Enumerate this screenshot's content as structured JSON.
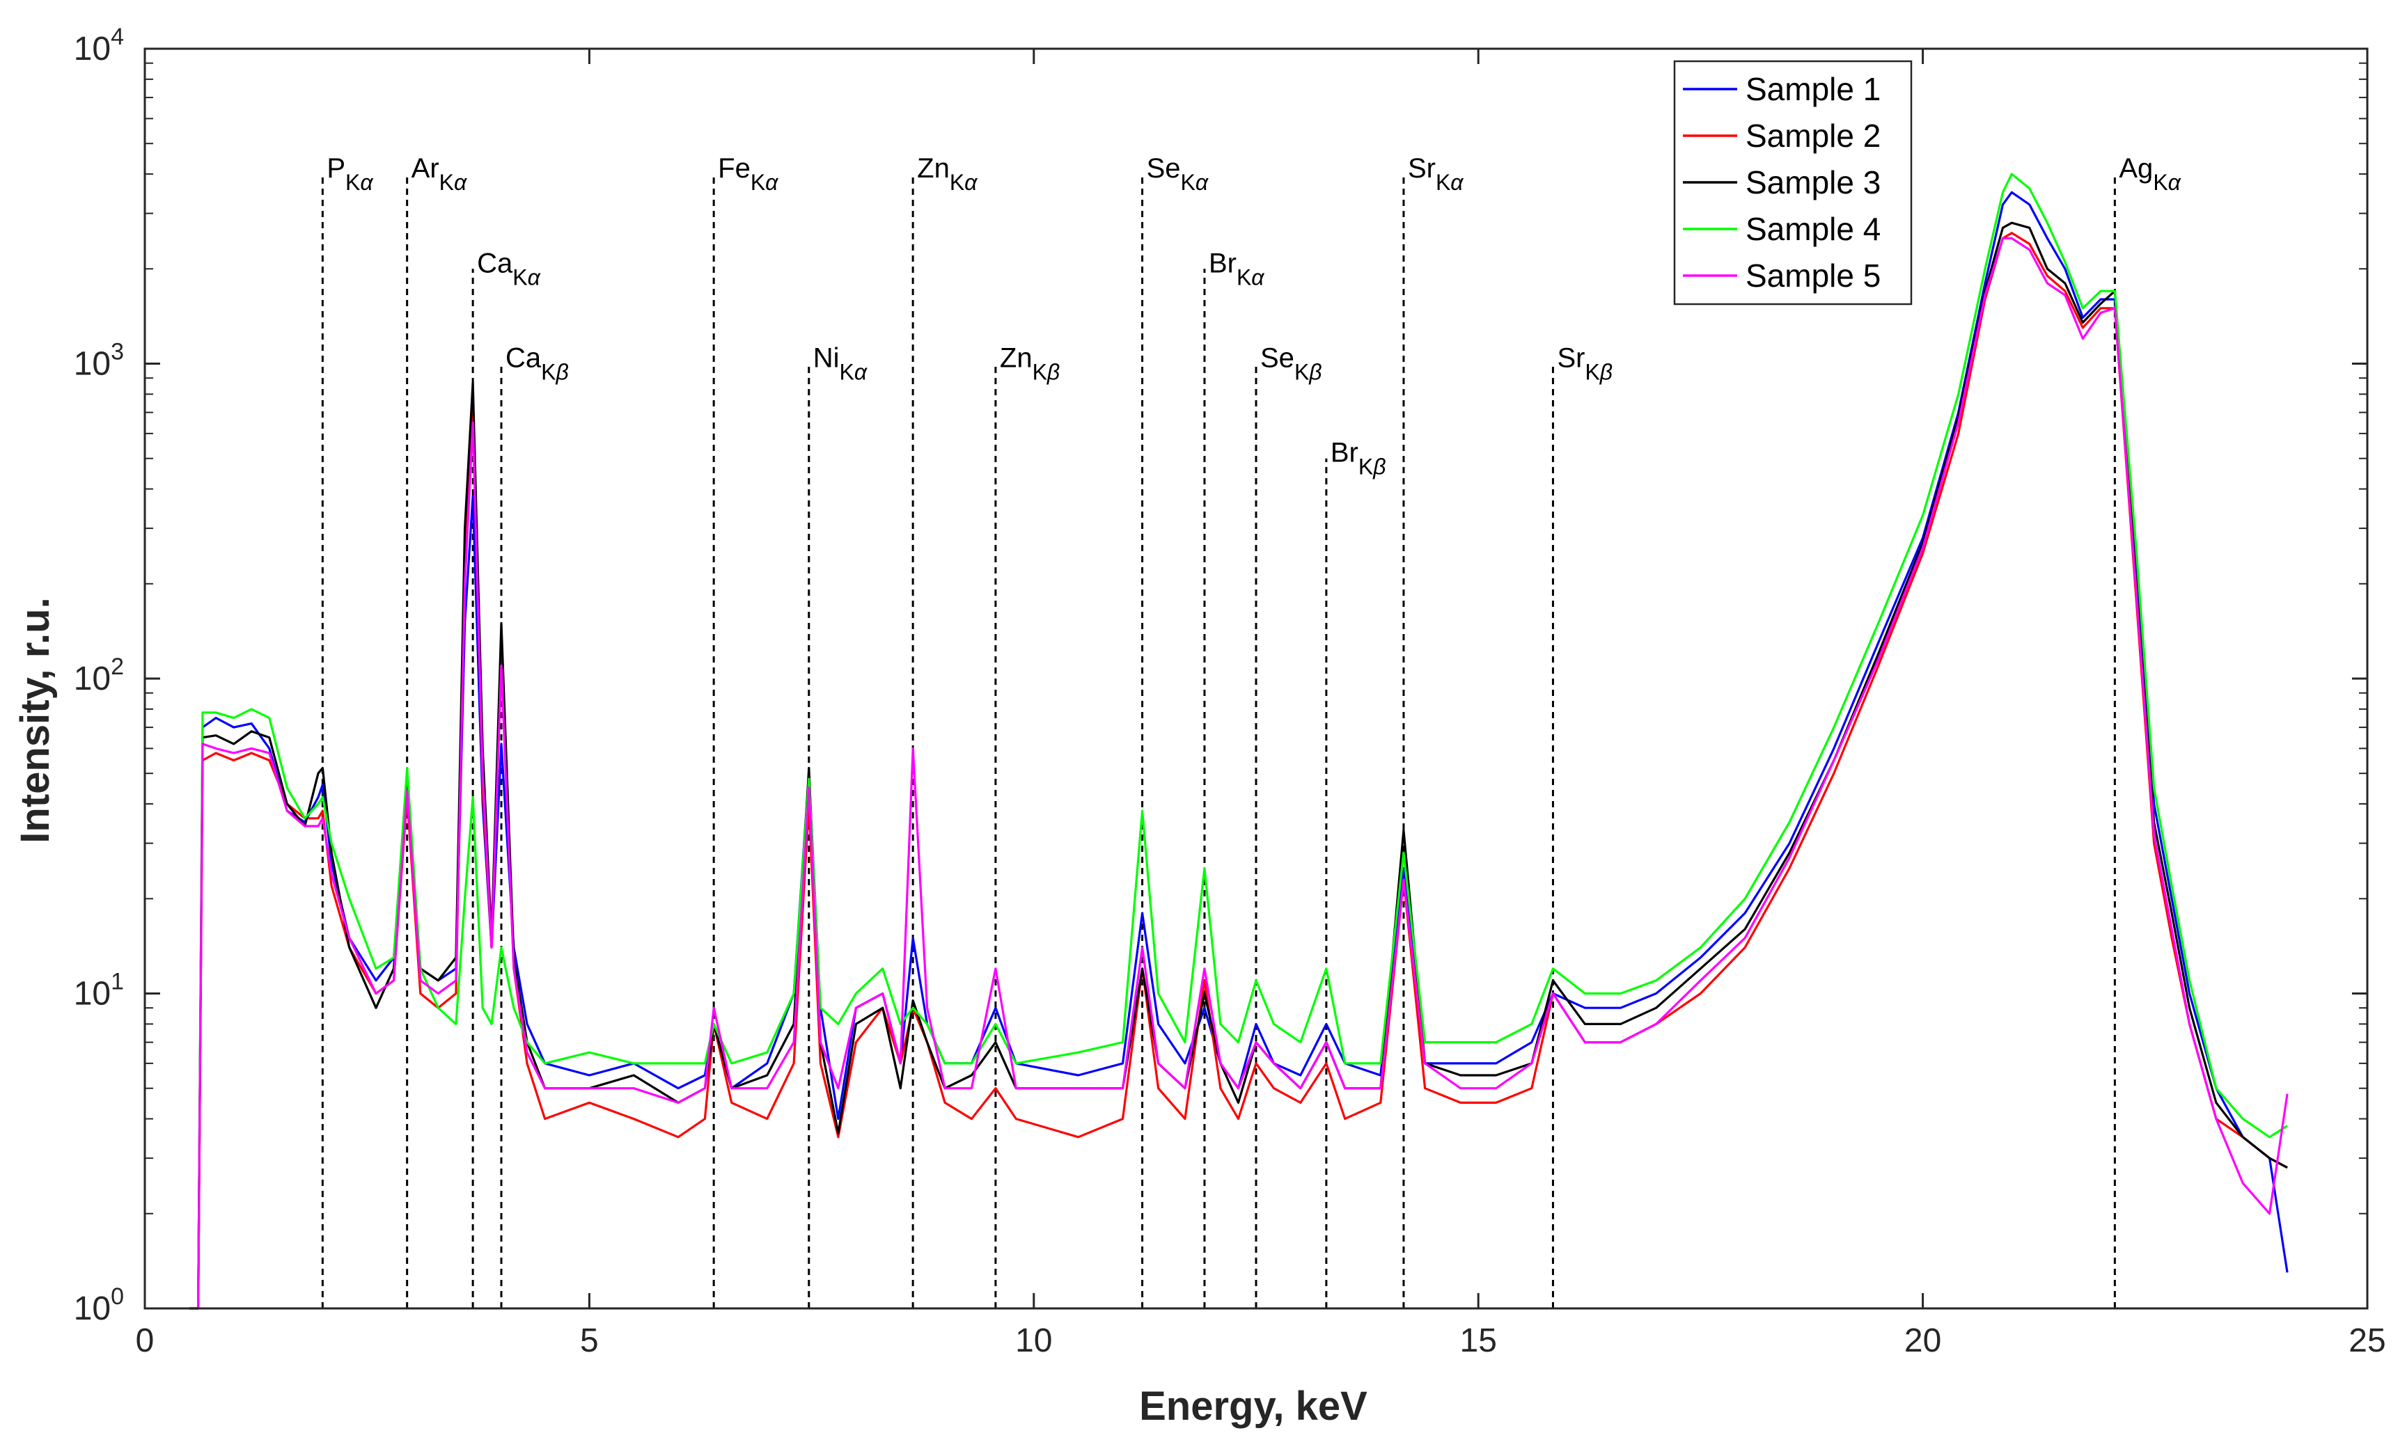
{
  "chart_data": {
    "type": "line",
    "title": "",
    "xlabel": "Energy, keV",
    "ylabel": "Intensity, r.u.",
    "xlim": [
      0,
      25
    ],
    "ylim": [
      1,
      10000
    ],
    "yscale": "log",
    "xticks": [
      0,
      5,
      10,
      15,
      20,
      25
    ],
    "yticks": [
      {
        "value": 1,
        "base": "10",
        "exp": "0"
      },
      {
        "value": 10,
        "base": "10",
        "exp": "1"
      },
      {
        "value": 100,
        "base": "10",
        "exp": "2"
      },
      {
        "value": 1000,
        "base": "10",
        "exp": "3"
      },
      {
        "value": 10000,
        "base": "10",
        "exp": "4"
      }
    ],
    "legend_position": "top-right",
    "peaks": [
      {
        "element": "P",
        "line": "Kα",
        "energy": 2.0,
        "top": 4000
      },
      {
        "element": "Ar",
        "line": "Kα",
        "energy": 2.95,
        "top": 4000
      },
      {
        "element": "Ca",
        "line": "Kα",
        "energy": 3.69,
        "top": 2000
      },
      {
        "element": "Ca",
        "line": "Kβ",
        "energy": 4.01,
        "top": 1000
      },
      {
        "element": "Fe",
        "line": "Kα",
        "energy": 6.4,
        "top": 4000
      },
      {
        "element": "Ni",
        "line": "Kα",
        "energy": 7.47,
        "top": 1000
      },
      {
        "element": "Zn",
        "line": "Kα",
        "energy": 8.64,
        "top": 4000
      },
      {
        "element": "Zn",
        "line": "Kβ",
        "energy": 9.57,
        "top": 1000
      },
      {
        "element": "Se",
        "line": "Kα",
        "energy": 11.22,
        "top": 4000
      },
      {
        "element": "Br",
        "line": "Kα",
        "energy": 11.92,
        "top": 2000
      },
      {
        "element": "Se",
        "line": "Kβ",
        "energy": 12.5,
        "top": 1000
      },
      {
        "element": "Br",
        "line": "Kβ",
        "energy": 13.29,
        "top": 500
      },
      {
        "element": "Sr",
        "line": "Kα",
        "energy": 14.16,
        "top": 4000
      },
      {
        "element": "Sr",
        "line": "Kβ",
        "energy": 15.84,
        "top": 1000
      },
      {
        "element": "Ag",
        "line": "Kα",
        "energy": 22.16,
        "top": 4000
      }
    ],
    "series": [
      {
        "name": "Sample 1",
        "color": "#0000ff",
        "x": [
          0.5,
          0.6,
          0.65,
          0.8,
          1.0,
          1.2,
          1.4,
          1.6,
          1.8,
          1.95,
          2.0,
          2.1,
          2.3,
          2.6,
          2.8,
          2.95,
          3.1,
          3.3,
          3.5,
          3.6,
          3.69,
          3.8,
          3.9,
          4.01,
          4.15,
          4.3,
          4.5,
          5.0,
          5.5,
          6.0,
          6.3,
          6.4,
          6.6,
          7.0,
          7.3,
          7.47,
          7.6,
          7.8,
          8.0,
          8.3,
          8.5,
          8.64,
          8.8,
          9.0,
          9.3,
          9.57,
          9.8,
          10.5,
          11.0,
          11.22,
          11.4,
          11.7,
          11.92,
          12.1,
          12.3,
          12.5,
          12.7,
          13.0,
          13.29,
          13.5,
          13.9,
          14.16,
          14.4,
          14.8,
          15.2,
          15.6,
          15.84,
          16.2,
          16.6,
          17.0,
          17.5,
          18.0,
          18.5,
          19.0,
          19.5,
          20.0,
          20.4,
          20.7,
          20.9,
          21.0,
          21.2,
          21.4,
          21.6,
          21.8,
          22.0,
          22.16,
          22.4,
          22.6,
          22.8,
          23.0,
          23.3,
          23.6,
          23.9,
          24.1
        ],
        "y": [
          1,
          1,
          70,
          75,
          70,
          72,
          60,
          38,
          35,
          42,
          46,
          26,
          15,
          11,
          13,
          45,
          12,
          11,
          12,
          150,
          380,
          40,
          14,
          62,
          14,
          8,
          6,
          5.5,
          6,
          5,
          5.5,
          8,
          5,
          6,
          10,
          50,
          9,
          4,
          9,
          10,
          6,
          15,
          8,
          6,
          6,
          9,
          6,
          5.5,
          6,
          18,
          8,
          6,
          9,
          6,
          5,
          8,
          6,
          5.5,
          8,
          6,
          5.5,
          25,
          6,
          6,
          6,
          7,
          10,
          9,
          9,
          10,
          13,
          18,
          30,
          60,
          130,
          280,
          700,
          1800,
          3200,
          3500,
          3200,
          2500,
          2000,
          1400,
          1600,
          1600,
          230,
          40,
          20,
          10,
          5,
          3.5,
          3,
          1.3
        ]
      },
      {
        "name": "Sample 2",
        "color": "#ff0000",
        "x": [
          0.5,
          0.6,
          0.65,
          0.8,
          1.0,
          1.2,
          1.4,
          1.6,
          1.8,
          1.95,
          2.0,
          2.1,
          2.3,
          2.6,
          2.8,
          2.95,
          3.1,
          3.3,
          3.5,
          3.6,
          3.69,
          3.8,
          3.9,
          4.01,
          4.15,
          4.3,
          4.5,
          5.0,
          5.5,
          6.0,
          6.3,
          6.4,
          6.6,
          7.0,
          7.3,
          7.47,
          7.6,
          7.8,
          8.0,
          8.3,
          8.5,
          8.64,
          8.8,
          9.0,
          9.3,
          9.57,
          9.8,
          10.5,
          11.0,
          11.22,
          11.4,
          11.7,
          11.92,
          12.1,
          12.3,
          12.5,
          12.7,
          13.0,
          13.29,
          13.5,
          13.9,
          14.16,
          14.4,
          14.8,
          15.2,
          15.6,
          15.84,
          16.2,
          16.6,
          17.0,
          17.5,
          18.0,
          18.5,
          19.0,
          19.5,
          20.0,
          20.4,
          20.7,
          20.9,
          21.0,
          21.2,
          21.4,
          21.6,
          21.8,
          22.0,
          22.16,
          22.4,
          22.6,
          22.8,
          23.0,
          23.3,
          23.6,
          23.9,
          24.1
        ],
        "y": [
          1,
          1,
          55,
          58,
          55,
          58,
          55,
          40,
          36,
          36,
          38,
          22,
          14,
          10,
          11,
          42,
          10,
          9,
          10,
          250,
          800,
          45,
          14,
          120,
          12,
          6,
          4,
          4.5,
          4,
          3.5,
          4,
          8,
          4.5,
          4,
          6,
          40,
          6,
          3.5,
          7,
          9,
          6,
          9,
          7,
          4.5,
          4,
          5,
          4,
          3.5,
          4,
          12,
          5,
          4,
          11,
          5,
          4,
          6,
          5,
          4.5,
          6,
          4,
          4.5,
          23,
          5,
          4.5,
          4.5,
          5,
          10,
          7,
          7,
          8,
          10,
          14,
          25,
          50,
          110,
          250,
          600,
          1600,
          2500,
          2600,
          2400,
          1900,
          1700,
          1300,
          1500,
          1500,
          180,
          30,
          15,
          8,
          4,
          3.5,
          3,
          2.8
        ]
      },
      {
        "name": "Sample 3",
        "color": "#000000",
        "x": [
          0.5,
          0.6,
          0.65,
          0.8,
          1.0,
          1.2,
          1.4,
          1.6,
          1.8,
          1.95,
          2.0,
          2.1,
          2.3,
          2.6,
          2.8,
          2.95,
          3.1,
          3.3,
          3.5,
          3.6,
          3.69,
          3.8,
          3.9,
          4.01,
          4.15,
          4.3,
          4.5,
          5.0,
          5.5,
          6.0,
          6.3,
          6.4,
          6.6,
          7.0,
          7.3,
          7.47,
          7.6,
          7.8,
          8.0,
          8.3,
          8.5,
          8.64,
          8.8,
          9.0,
          9.3,
          9.57,
          9.8,
          10.5,
          11.0,
          11.22,
          11.4,
          11.7,
          11.92,
          12.1,
          12.3,
          12.5,
          12.7,
          13.0,
          13.29,
          13.5,
          13.9,
          14.16,
          14.4,
          14.8,
          15.2,
          15.6,
          15.84,
          16.2,
          16.6,
          17.0,
          17.5,
          18.0,
          18.5,
          19.0,
          19.5,
          20.0,
          20.4,
          20.7,
          20.9,
          21.0,
          21.2,
          21.4,
          21.6,
          21.8,
          22.0,
          22.16,
          22.4,
          22.6,
          22.8,
          23.0,
          23.3,
          23.6,
          23.9,
          24.1
        ],
        "y": [
          1,
          1,
          65,
          66,
          62,
          68,
          65,
          40,
          34,
          50,
          52,
          28,
          14,
          9,
          12,
          48,
          12,
          11,
          13,
          300,
          870,
          60,
          15,
          150,
          13,
          7,
          5,
          5,
          5.5,
          4.5,
          5,
          8,
          5,
          5.5,
          8,
          52,
          7,
          3.6,
          8,
          9,
          5,
          9.5,
          7,
          5,
          5.5,
          7,
          5,
          5,
          5,
          12,
          6,
          5,
          10,
          6,
          4.5,
          7,
          6,
          5,
          7,
          5,
          5,
          33,
          6,
          5.5,
          5.5,
          6,
          11,
          8,
          8,
          9,
          12,
          16,
          28,
          55,
          120,
          270,
          680,
          1700,
          2700,
          2800,
          2700,
          2000,
          1800,
          1350,
          1550,
          1700,
          200,
          35,
          18,
          9,
          4.5,
          3.5,
          3,
          2.8
        ]
      },
      {
        "name": "Sample 4",
        "color": "#00ff00",
        "x": [
          0.5,
          0.6,
          0.65,
          0.8,
          1.0,
          1.2,
          1.4,
          1.6,
          1.8,
          1.95,
          2.0,
          2.1,
          2.3,
          2.6,
          2.8,
          2.95,
          3.1,
          3.3,
          3.5,
          3.6,
          3.69,
          3.8,
          3.9,
          4.01,
          4.15,
          4.3,
          4.5,
          5.0,
          5.5,
          6.0,
          6.3,
          6.4,
          6.6,
          7.0,
          7.3,
          7.47,
          7.6,
          7.8,
          8.0,
          8.3,
          8.5,
          8.64,
          8.8,
          9.0,
          9.3,
          9.57,
          9.8,
          10.5,
          11.0,
          11.22,
          11.4,
          11.7,
          11.92,
          12.1,
          12.3,
          12.5,
          12.7,
          13.0,
          13.29,
          13.5,
          13.9,
          14.16,
          14.4,
          14.8,
          15.2,
          15.6,
          15.84,
          16.2,
          16.6,
          17.0,
          17.5,
          18.0,
          18.5,
          19.0,
          19.5,
          20.0,
          20.4,
          20.7,
          20.9,
          21.0,
          21.2,
          21.4,
          21.6,
          21.8,
          22.0,
          22.16,
          22.4,
          22.6,
          22.8,
          23.0,
          23.3,
          23.6,
          23.9,
          24.1
        ],
        "y": [
          1,
          1,
          78,
          78,
          75,
          80,
          75,
          45,
          36,
          40,
          42,
          30,
          20,
          12,
          13,
          52,
          12,
          9,
          8,
          20,
          42,
          9,
          8,
          14,
          9,
          7,
          6,
          6.5,
          6,
          6,
          6,
          8,
          6,
          6.5,
          10,
          48,
          9,
          8,
          10,
          12,
          8,
          9,
          8,
          6,
          6,
          8,
          6,
          6.5,
          7,
          38,
          10,
          7,
          25,
          8,
          7,
          11,
          8,
          7,
          12,
          6,
          6,
          28,
          7,
          7,
          7,
          8,
          12,
          10,
          10,
          11,
          14,
          20,
          35,
          70,
          150,
          330,
          800,
          2000,
          3500,
          4000,
          3600,
          2800,
          2100,
          1500,
          1700,
          1700,
          260,
          45,
          22,
          11,
          5,
          4,
          3.5,
          3.8
        ]
      },
      {
        "name": "Sample 5",
        "color": "#ff00ff",
        "x": [
          0.5,
          0.6,
          0.65,
          0.8,
          1.0,
          1.2,
          1.4,
          1.6,
          1.8,
          1.95,
          2.0,
          2.1,
          2.3,
          2.6,
          2.8,
          2.95,
          3.1,
          3.3,
          3.5,
          3.6,
          3.69,
          3.8,
          3.9,
          4.01,
          4.15,
          4.3,
          4.5,
          5.0,
          5.5,
          6.0,
          6.3,
          6.4,
          6.6,
          7.0,
          7.3,
          7.47,
          7.6,
          7.8,
          8.0,
          8.3,
          8.5,
          8.64,
          8.8,
          9.0,
          9.3,
          9.57,
          9.8,
          10.5,
          11.0,
          11.22,
          11.4,
          11.7,
          11.92,
          12.1,
          12.3,
          12.5,
          12.7,
          13.0,
          13.29,
          13.5,
          13.9,
          14.16,
          14.4,
          14.8,
          15.2,
          15.6,
          15.84,
          16.2,
          16.6,
          17.0,
          17.5,
          18.0,
          18.5,
          19.0,
          19.5,
          20.0,
          20.4,
          20.7,
          20.9,
          21.0,
          21.2,
          21.4,
          21.6,
          21.8,
          22.0,
          22.16,
          22.4,
          22.6,
          22.8,
          23.0,
          23.3,
          23.6,
          23.9,
          24.1
        ],
        "y": [
          1,
          1,
          62,
          60,
          58,
          60,
          58,
          38,
          34,
          34,
          36,
          24,
          15,
          10,
          11,
          44,
          11,
          10,
          11,
          200,
          650,
          50,
          14,
          110,
          12,
          6.5,
          5,
          5,
          5,
          4.5,
          5,
          9,
          5,
          5,
          7,
          45,
          7,
          5,
          9,
          10,
          6,
          60,
          9,
          5,
          5,
          12,
          5,
          5,
          5,
          14,
          6,
          5,
          12,
          6,
          5,
          7,
          6,
          5,
          7,
          5,
          5,
          23,
          6,
          5,
          5,
          6,
          10,
          7,
          7,
          8,
          11,
          15,
          27,
          55,
          115,
          260,
          650,
          1650,
          2500,
          2500,
          2300,
          1800,
          1650,
          1200,
          1450,
          1500,
          190,
          32,
          16,
          8,
          4,
          2.5,
          2,
          4.8
        ]
      }
    ]
  }
}
